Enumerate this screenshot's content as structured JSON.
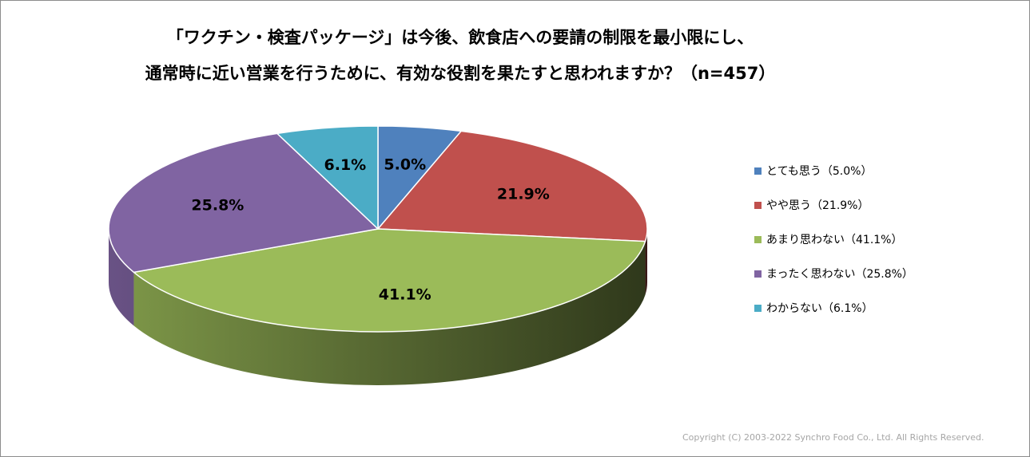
{
  "title": {
    "line1": "「ワクチン・検査パッケージ」は今後、飲食店への要請の制限を最小限にし、",
    "line2": "通常時に近い営業を行うために、有効な役割を果たすと思われますか？（n=457）"
  },
  "chart_data": {
    "type": "pie",
    "style": "3d",
    "n": 457,
    "legend_position": "right",
    "slices": [
      {
        "category": "とても思う",
        "value": 5.0,
        "label": "5.0%",
        "legend": "とても思う（5.0%）",
        "color": "#4f81bd"
      },
      {
        "category": "やや思う",
        "value": 21.9,
        "label": "21.9%",
        "legend": "やや思う（21.9%）",
        "color": "#c0504d"
      },
      {
        "category": "あまり思わない",
        "value": 41.1,
        "label": "41.1%",
        "legend": "あまり思わない（41.1%）",
        "color": "#9bbb59"
      },
      {
        "category": "まったく思わない",
        "value": 25.8,
        "label": "25.8%",
        "legend": "まったく思わない（25.8%）",
        "color": "#8064a2"
      },
      {
        "category": "わからない",
        "value": 6.1,
        "label": "6.1%",
        "legend": "わからない（6.1%）",
        "color": "#4bacc6"
      }
    ]
  },
  "copyright": "Copyright (C) 2003-2022   Synchro Food Co., Ltd. All Rights Reserved."
}
